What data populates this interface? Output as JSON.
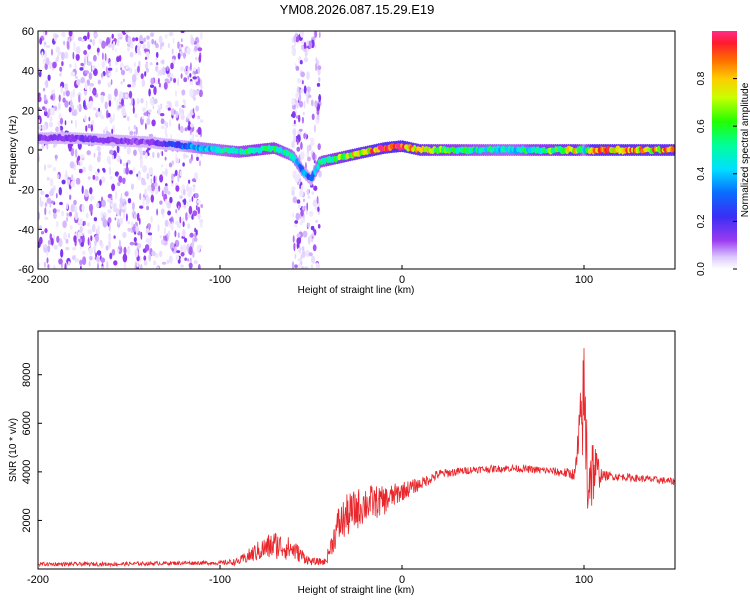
{
  "title": "YM08.2026.087.15.29.E19",
  "chart_data": [
    {
      "type": "heatmap",
      "name": "spectrogram",
      "xlabel": "Height of straight line (km)",
      "ylabel": "Frequency (Hz)",
      "xlim": [
        -200,
        150
      ],
      "ylim": [
        -60,
        60
      ],
      "xticks": [
        -200,
        -100,
        0,
        100
      ],
      "yticks": [
        -60,
        -40,
        -20,
        0,
        20,
        40,
        60
      ],
      "colorbar": {
        "label": "Normalized spectral amplitude",
        "range": [
          0,
          1
        ],
        "ticks": [
          0.0,
          0.2,
          0.4,
          0.6,
          0.8
        ]
      },
      "ridge": {
        "x": [
          -200,
          -180,
          -160,
          -140,
          -120,
          -110,
          -100,
          -90,
          -80,
          -70,
          -60,
          -55,
          -50,
          -45,
          -40,
          -30,
          -20,
          -10,
          0,
          10,
          20,
          40,
          60,
          80,
          95,
          100,
          105,
          120,
          150
        ],
        "freq": [
          6,
          6,
          5,
          4,
          2,
          1,
          0,
          -1,
          0,
          1,
          -3,
          -10,
          -15,
          -6,
          -5,
          -3,
          -1,
          1,
          2,
          0,
          0,
          0,
          0,
          0,
          0,
          0,
          0,
          0,
          0
        ],
        "amplitude": [
          0.15,
          0.15,
          0.15,
          0.12,
          0.3,
          0.45,
          0.45,
          0.5,
          0.55,
          0.55,
          0.45,
          0.35,
          0.3,
          0.5,
          0.55,
          0.7,
          0.8,
          0.85,
          0.9,
          0.75,
          0.6,
          0.5,
          0.45,
          0.6,
          0.75,
          0.4,
          0.85,
          0.8,
          0.8
        ]
      },
      "noise_regions": [
        {
          "x": [
            -200,
            -110
          ],
          "freq": [
            -60,
            60
          ],
          "density": "high"
        },
        {
          "x": [
            -60,
            -45
          ],
          "freq": [
            -60,
            60
          ],
          "density": "medium"
        }
      ]
    },
    {
      "type": "line",
      "name": "snr",
      "xlabel": "Height of straight line (km)",
      "ylabel": "SNR (10 * v/v)",
      "xlim": [
        -200,
        150
      ],
      "ylim": [
        0,
        9800
      ],
      "xticks": [
        -200,
        -100,
        0,
        100
      ],
      "yticks": [
        2000,
        4000,
        6000,
        8000
      ],
      "color": "#e8262b",
      "x": [
        -200,
        -160,
        -120,
        -100,
        -90,
        -80,
        -70,
        -60,
        -50,
        -42,
        -35,
        -30,
        -20,
        -10,
        0,
        10,
        20,
        40,
        60,
        80,
        95,
        100,
        102,
        105,
        110,
        120,
        150
      ],
      "y": [
        200,
        200,
        250,
        250,
        300,
        700,
        1000,
        800,
        300,
        300,
        1800,
        2200,
        2700,
        2800,
        3200,
        3500,
        3900,
        4100,
        4150,
        4050,
        3900,
        7000,
        4000,
        4100,
        3850,
        3800,
        3600
      ],
      "noise": [
        80,
        80,
        80,
        80,
        150,
        400,
        600,
        450,
        150,
        150,
        800,
        900,
        800,
        600,
        400,
        250,
        200,
        150,
        150,
        150,
        250,
        2500,
        2500,
        1500,
        200,
        150,
        150
      ]
    }
  ]
}
